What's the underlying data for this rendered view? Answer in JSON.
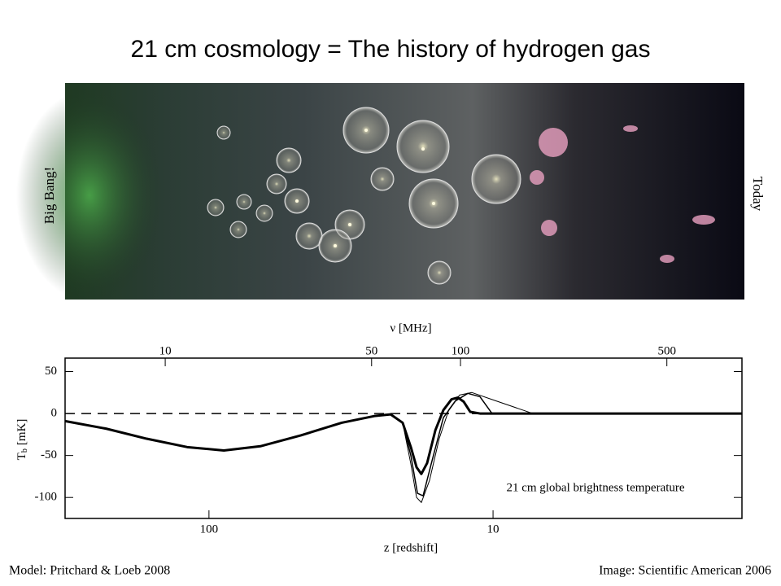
{
  "title": "21 cm cosmology = The history of hydrogen gas",
  "image": {
    "left_label": "Big Bang!",
    "right_label": "Today"
  },
  "chart_data": {
    "type": "line",
    "xlabel": "ν  [MHz]",
    "x2label": "z  [redshift]",
    "ylabel_symbol": "T",
    "ylabel_subscript": "b",
    "ylabel_unit": "[mK]",
    "annotation": "21 cm global brightness temperature",
    "xscale": "log",
    "xlim": [
      4.58,
      898
    ],
    "xticks": [
      10,
      50,
      100,
      500
    ],
    "x2scale": "log",
    "x2lim": [
      321,
      1.33
    ],
    "x2ticks": [
      100,
      10
    ],
    "ylim": [
      -125,
      66
    ],
    "yticks": [
      50,
      0,
      -50,
      -100
    ],
    "hline": 0,
    "series": [
      {
        "color": "#000000",
        "line_width": 3,
        "x": [
          4.58,
          6.3,
          8.65,
          11.87,
          15.8,
          21.0,
          28.8,
          39.6,
          51.1,
          58.0,
          63.7,
          67.9,
          71.0,
          73.7,
          77.1,
          82.2,
          87.5,
          93.3,
          98.1,
          102.6,
          107.9,
          116.4,
          898
        ],
        "values": [
          -9,
          -18,
          -30,
          -40,
          -44,
          -39,
          -26,
          -11,
          -3,
          -1,
          -11,
          -40,
          -64,
          -72,
          -59,
          -20,
          4,
          17,
          19,
          14,
          2,
          0,
          0
        ]
      },
      {
        "color": "#000000",
        "line_width": 1,
        "x": [
          4.58,
          6.3,
          8.65,
          11.87,
          15.8,
          21.0,
          28.8,
          39.6,
          51.1,
          58.0,
          63.7,
          67.9,
          71.0,
          73.7,
          78.5,
          84.7,
          91.4,
          99.3,
          109.3,
          132.1,
          175.8,
          898
        ],
        "values": [
          -9,
          -18,
          -30,
          -40,
          -44,
          -39,
          -26,
          -11,
          -3,
          -1,
          -11,
          -60,
          -100,
          -106,
          -80,
          -30,
          5,
          22,
          25,
          15,
          0,
          0
        ]
      },
      {
        "color": "#000000",
        "line_width": 1.5,
        "x": [
          4.58,
          6.3,
          8.65,
          11.87,
          15.8,
          21.0,
          28.8,
          39.6,
          51.1,
          58.0,
          63.7,
          67.9,
          71.5,
          74.7,
          79.6,
          87.5,
          96.2,
          105.9,
          116.4,
          127.9,
          898
        ],
        "values": [
          -9,
          -18,
          -30,
          -40,
          -44,
          -39,
          -26,
          -11,
          -3,
          -1,
          -11,
          -50,
          -95,
          -98,
          -60,
          -5,
          15,
          24,
          20,
          0,
          0
        ]
      }
    ]
  },
  "footer": {
    "left": "Model: Pritchard & Loeb 2008",
    "right": "Image: Scientific American 2006"
  }
}
